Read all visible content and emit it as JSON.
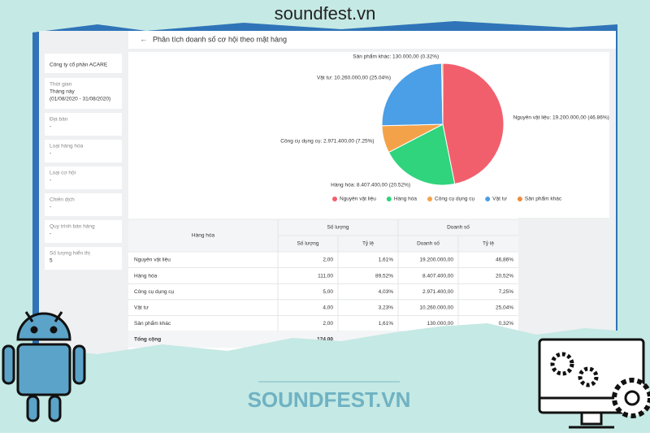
{
  "brand": "soundfest.vn",
  "watermark": "SOUNDFEST.VN",
  "page_title": "Phân tích doanh số cơ hội theo mặt hàng",
  "sidebar": {
    "company": "Công ty cổ phần ACARE",
    "filters": [
      {
        "label": "Thời gian",
        "value": "Tháng này",
        "detail": "(01/08/2020 - 31/08/2020)"
      },
      {
        "label": "Địa bàn",
        "value": "-"
      },
      {
        "label": "Loại hàng hóa",
        "value": "-"
      },
      {
        "label": "Loại cơ hội",
        "value": "-"
      },
      {
        "label": "Chiến dịch",
        "value": "-"
      },
      {
        "label": "Quy trình bán hàng",
        "value": "-"
      },
      {
        "label": "Số lượng hiển thị",
        "value": "5"
      }
    ]
  },
  "chart_data": {
    "type": "pie",
    "categories": [
      "Nguyên vật liệu",
      "Hàng hóa",
      "Công cụ dụng cụ",
      "Vật tư",
      "Sản phẩm khác"
    ],
    "values": [
      19200000,
      8407400,
      2971400,
      10260000,
      130000
    ],
    "value_labels": [
      "Nguyên vật liệu: 19.200.000,00 (46.86%)",
      "Hàng hóa: 8.407.400,00 (20.52%)",
      "Công cụ dụng cụ: 2.971.400,00 (7.25%)",
      "Vật tư: 10.260.000,00 (25.04%)",
      "Sản phẩm khác: 130.000,00 (0.32%)"
    ],
    "colors": [
      "#f25f6c",
      "#2fd47d",
      "#f4a24a",
      "#4a9fe6",
      "#f08b3b"
    ],
    "legend": "bottom"
  },
  "table": {
    "header": {
      "item": "Hàng hóa",
      "quantity_group": "Số lượng",
      "revenue_group": "Doanh số",
      "sub": [
        "Số lượng",
        "Tỷ lệ",
        "Doanh số",
        "Tỷ lệ"
      ]
    },
    "rows": [
      [
        "Nguyên vật liệu",
        "2,00",
        "1,61%",
        "19.200.000,00",
        "46,86%"
      ],
      [
        "Hàng hóa",
        "111,00",
        "89,52%",
        "8.407.400,00",
        "20,52%"
      ],
      [
        "Công cụ dụng cụ",
        "5,00",
        "4,03%",
        "2.971.400,00",
        "7,25%"
      ],
      [
        "Vật tư",
        "4,00",
        "3,23%",
        "10.260.000,00",
        "25,04%"
      ],
      [
        "Sản phẩm khác",
        "2,00",
        "1,61%",
        "130.000,00",
        "0,32%"
      ]
    ],
    "total": [
      "Tổng cộng",
      "124,00"
    ]
  }
}
